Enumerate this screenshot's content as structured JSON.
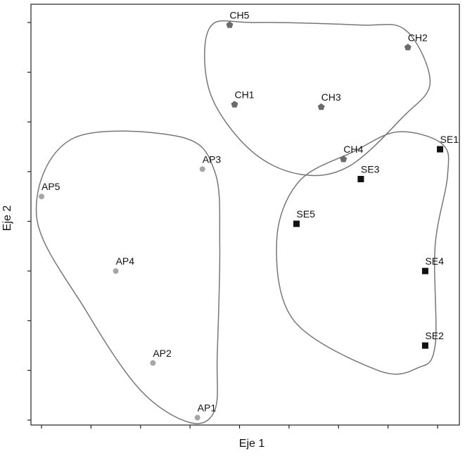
{
  "chart_data": {
    "type": "scatter",
    "title": "",
    "xlabel": "Eje 1",
    "ylabel": "Eje 2",
    "xlim": [
      0,
      8
    ],
    "ylim": [
      0,
      8
    ],
    "grid": false,
    "legend": "none",
    "tick_labels_shown": false,
    "colors": {
      "AP": "#a6a6a6",
      "CH": "#6b6b6b",
      "SE": "#111111",
      "hull": "#777777",
      "axis": "#222222"
    },
    "groups": [
      {
        "id": "AP",
        "marker": "circle",
        "points": [
          {
            "label": "AP1",
            "x": 3.15,
            "y": 0.05
          },
          {
            "label": "AP2",
            "x": 2.25,
            "y": 1.15
          },
          {
            "label": "AP3",
            "x": 3.25,
            "y": 5.05
          },
          {
            "label": "AP4",
            "x": 1.5,
            "y": 3.0
          },
          {
            "label": "AP5",
            "x": 0.0,
            "y": 4.5
          }
        ],
        "hull": [
          [
            0.6,
            5.65
          ],
          [
            2.8,
            5.7
          ],
          [
            3.5,
            5.0
          ],
          [
            3.6,
            3.5
          ],
          [
            3.55,
            1.3
          ],
          [
            3.5,
            0.2
          ],
          [
            3.0,
            -0.05
          ],
          [
            2.0,
            0.6
          ],
          [
            0.9,
            2.2
          ],
          [
            -0.1,
            4.1
          ]
        ]
      },
      {
        "id": "CH",
        "marker": "pentagon",
        "points": [
          {
            "label": "CH1",
            "x": 3.9,
            "y": 6.35
          },
          {
            "label": "CH2",
            "x": 7.4,
            "y": 7.5
          },
          {
            "label": "CH3",
            "x": 5.65,
            "y": 6.3
          },
          {
            "label": "CH4",
            "x": 6.1,
            "y": 5.25
          },
          {
            "label": "CH5",
            "x": 3.8,
            "y": 7.95
          }
        ],
        "hull": [
          [
            3.4,
            7.9
          ],
          [
            4.3,
            8.0
          ],
          [
            6.4,
            7.95
          ],
          [
            7.35,
            7.85
          ],
          [
            7.85,
            6.8
          ],
          [
            7.3,
            6.1
          ],
          [
            6.2,
            5.1
          ],
          [
            5.2,
            4.95
          ],
          [
            4.2,
            5.45
          ],
          [
            3.4,
            6.6
          ]
        ]
      },
      {
        "id": "SE",
        "marker": "square",
        "points": [
          {
            "label": "SE1",
            "x": 8.05,
            "y": 5.45
          },
          {
            "label": "SE2",
            "x": 7.75,
            "y": 1.5
          },
          {
            "label": "SE3",
            "x": 6.45,
            "y": 4.85
          },
          {
            "label": "SE4",
            "x": 7.75,
            "y": 3.0
          },
          {
            "label": "SE5",
            "x": 5.15,
            "y": 3.95
          }
        ],
        "hull": [
          [
            7.2,
            5.8
          ],
          [
            8.1,
            5.55
          ],
          [
            8.2,
            4.9
          ],
          [
            7.95,
            3.5
          ],
          [
            7.95,
            1.5
          ],
          [
            7.6,
            1.05
          ],
          [
            6.8,
            1.0
          ],
          [
            5.1,
            2.0
          ],
          [
            4.75,
            3.6
          ],
          [
            5.2,
            4.8
          ],
          [
            6.3,
            5.4
          ]
        ]
      }
    ]
  }
}
